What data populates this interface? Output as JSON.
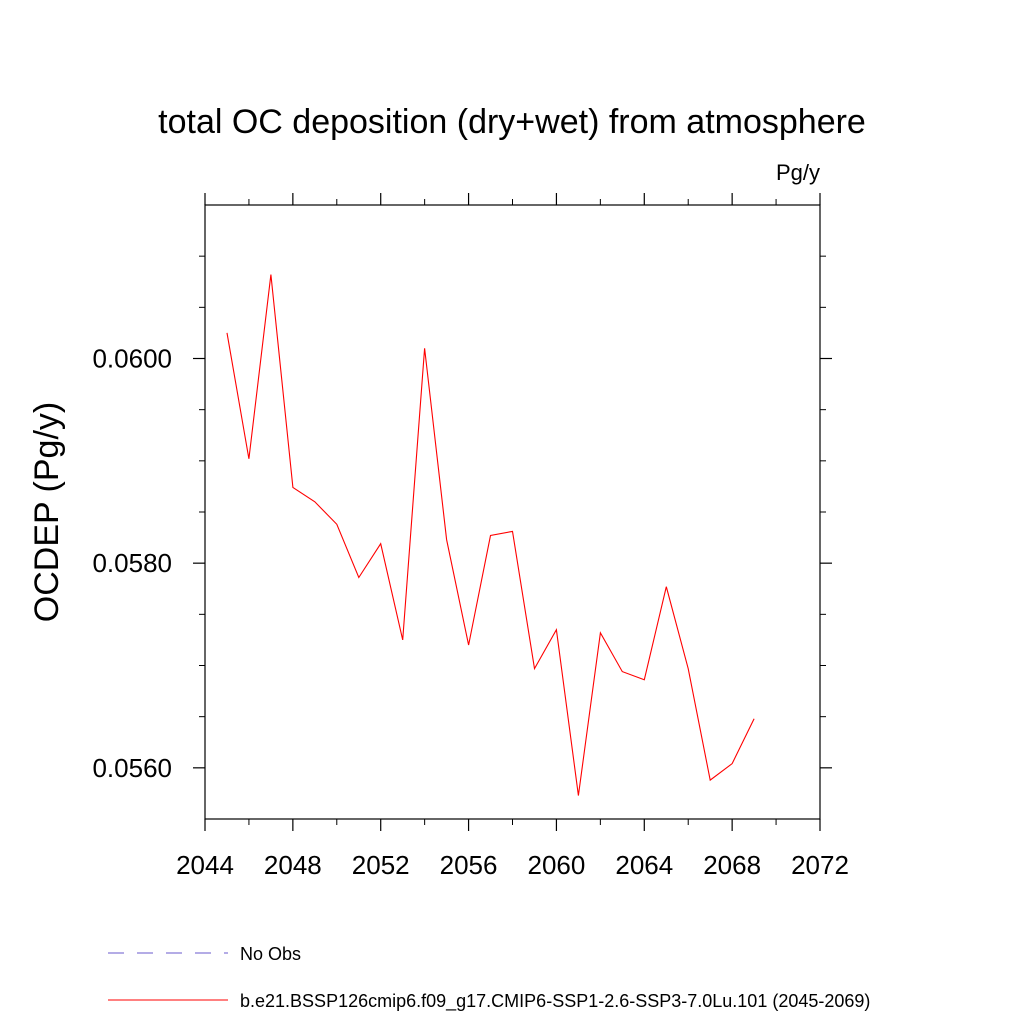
{
  "chart_data": {
    "type": "line",
    "title": "total OC deposition (dry+wet) from atmosphere",
    "units_label": "Pg/y",
    "ylabel": "OCDEP  (Pg/y)",
    "xlabel": "",
    "xlim": [
      2044,
      2072
    ],
    "ylim": [
      0.0555,
      0.0615
    ],
    "x_ticks": [
      2044,
      2048,
      2052,
      2056,
      2060,
      2064,
      2068,
      2072
    ],
    "y_ticks": [
      0.056,
      0.058,
      0.06
    ],
    "y_tick_labels": [
      "0.0560",
      "0.0580",
      "0.0600"
    ],
    "grid": false,
    "legend_position": "bottom",
    "series": [
      {
        "name": "b.e21.BSSP126cmip6.f09_g17.CMIP6-SSP1-2.6-SSP3-7.0Lu.101 (2045-2069)",
        "color": "#ff0000",
        "dash": "solid",
        "x": [
          2045,
          2046,
          2047,
          2048,
          2049,
          2050,
          2051,
          2052,
          2053,
          2054,
          2055,
          2056,
          2057,
          2058,
          2059,
          2060,
          2061,
          2062,
          2063,
          2064,
          2065,
          2066,
          2067,
          2068,
          2069
        ],
        "y": [
          0.06025,
          0.05902,
          0.06082,
          0.05874,
          0.0586,
          0.05838,
          0.05786,
          0.05819,
          0.05725,
          0.0601,
          0.05823,
          0.0572,
          0.05827,
          0.05831,
          0.05697,
          0.05735,
          0.05573,
          0.05732,
          0.05694,
          0.05686,
          0.05777,
          0.05697,
          0.05588,
          0.05604,
          0.05648
        ]
      }
    ],
    "legend": [
      {
        "label": "No Obs",
        "color": "#6a5acd",
        "dash": "dashed"
      },
      {
        "label": "b.e21.BSSP126cmip6.f09_g17.CMIP6-SSP1-2.6-SSP3-7.0Lu.101 (2045-2069)",
        "color": "#ff0000",
        "dash": "solid"
      }
    ]
  }
}
